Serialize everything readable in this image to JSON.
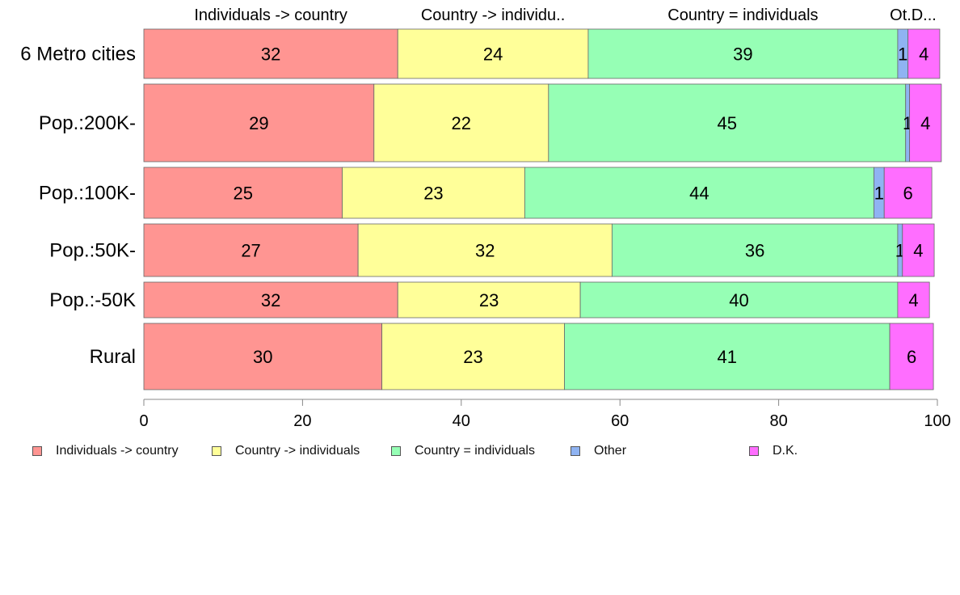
{
  "chart_data": {
    "type": "bar",
    "orientation": "horizontal",
    "stacked": true,
    "categories": [
      "6 Metro cities",
      "Pop.:200K-",
      "Pop.:100K-",
      "Pop.:50K-",
      "Pop.:-50K",
      "Rural"
    ],
    "series": [
      {
        "name": "Individuals -> country",
        "color": "#ff9592",
        "values": [
          32,
          29,
          25,
          27,
          32,
          30
        ],
        "labels": [
          "32",
          "29",
          "25",
          "27",
          "32",
          "30"
        ],
        "header_label": "Individuals -> country"
      },
      {
        "name": "Country -> individuals",
        "color": "#ffff99",
        "values": [
          24,
          22,
          23,
          32,
          23,
          23
        ],
        "labels": [
          "24",
          "22",
          "23",
          "32",
          "23",
          "23"
        ],
        "header_label": "Country -> individu.."
      },
      {
        "name": "Country = individuals",
        "color": "#96ffb5",
        "values": [
          39,
          45,
          44,
          36,
          40,
          41
        ],
        "labels": [
          "39",
          "45",
          "44",
          "36",
          "40",
          "41"
        ],
        "header_label": "Country = individuals"
      },
      {
        "name": "Other",
        "color": "#8fb3f2",
        "values": [
          1.3,
          0.5,
          1.3,
          0.6,
          0,
          0
        ],
        "labels": [
          "1",
          "1",
          "1",
          "1",
          "",
          ""
        ],
        "header_label": "Ot.."
      },
      {
        "name": "D.K.",
        "color": "#ff6eff",
        "values": [
          4,
          4,
          6,
          4,
          4,
          5.5
        ],
        "labels": [
          "4",
          "4",
          "6",
          "4",
          "4",
          "6"
        ],
        "header_label": "D..."
      }
    ],
    "xlim": [
      0,
      100
    ],
    "x_ticks": [
      "0",
      "20",
      "40",
      "60",
      "80",
      "100"
    ],
    "title": "",
    "xlabel": "",
    "ylabel": "",
    "grid": false,
    "legend_position": "bottom"
  }
}
